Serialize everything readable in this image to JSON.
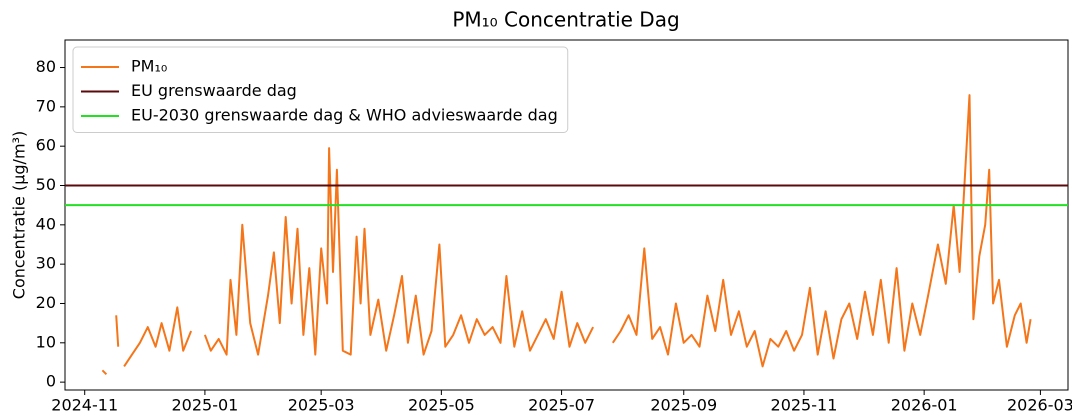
{
  "chart_data": {
    "type": "line",
    "title": "PM₁₀ Concentratie Dag",
    "ylabel": "Concentratie (μg/m³)",
    "legend": "upper left",
    "ylim": [
      -2,
      87
    ],
    "yticks": [
      0,
      10,
      20,
      30,
      40,
      50,
      60,
      70,
      80
    ],
    "xlim": [
      "2024-10-22",
      "2026-03-15"
    ],
    "xticks": [
      "2024-11",
      "2025-01",
      "2025-03",
      "2025-05",
      "2025-07",
      "2025-09",
      "2025-11",
      "2026-01",
      "2026-03"
    ],
    "x": [
      "2024-11-10",
      "2024-11-12",
      "2024-11-14",
      "2024-11-17",
      "2024-11-18",
      "2024-11-19",
      "2024-11-21",
      "2024-11-25",
      "2024-11-29",
      "2024-12-03",
      "2024-12-07",
      "2024-12-10",
      "2024-12-14",
      "2024-12-18",
      "2024-12-21",
      "2024-12-25",
      "2024-12-28",
      "2025-01-01",
      "2025-01-04",
      "2025-01-08",
      "2025-01-12",
      "2025-01-14",
      "2025-01-17",
      "2025-01-20",
      "2025-01-24",
      "2025-01-28",
      "2025-02-02",
      "2025-02-05",
      "2025-02-08",
      "2025-02-11",
      "2025-02-14",
      "2025-02-17",
      "2025-02-20",
      "2025-02-23",
      "2025-02-26",
      "2025-03-01",
      "2025-03-04",
      "2025-03-05",
      "2025-03-07",
      "2025-03-09",
      "2025-03-12",
      "2025-03-16",
      "2025-03-19",
      "2025-03-21",
      "2025-03-23",
      "2025-03-26",
      "2025-03-30",
      "2025-04-03",
      "2025-04-07",
      "2025-04-11",
      "2025-04-14",
      "2025-04-18",
      "2025-04-22",
      "2025-04-26",
      "2025-04-30",
      "2025-05-03",
      "2025-05-07",
      "2025-05-11",
      "2025-05-15",
      "2025-05-19",
      "2025-05-23",
      "2025-05-27",
      "2025-05-31",
      "2025-06-03",
      "2025-06-07",
      "2025-06-11",
      "2025-06-15",
      "2025-06-19",
      "2025-06-23",
      "2025-06-27",
      "2025-07-01",
      "2025-07-05",
      "2025-07-09",
      "2025-07-13",
      "2025-07-17",
      "2025-07-22",
      "2025-07-27",
      "2025-07-31",
      "2025-08-04",
      "2025-08-08",
      "2025-08-12",
      "2025-08-16",
      "2025-08-20",
      "2025-08-24",
      "2025-08-28",
      "2025-09-01",
      "2025-09-05",
      "2025-09-09",
      "2025-09-13",
      "2025-09-17",
      "2025-09-21",
      "2025-09-25",
      "2025-09-29",
      "2025-10-03",
      "2025-10-07",
      "2025-10-11",
      "2025-10-15",
      "2025-10-19",
      "2025-10-23",
      "2025-10-27",
      "2025-10-31",
      "2025-11-04",
      "2025-11-08",
      "2025-11-12",
      "2025-11-16",
      "2025-11-20",
      "2025-11-24",
      "2025-11-28",
      "2025-12-02",
      "2025-12-06",
      "2025-12-10",
      "2025-12-14",
      "2025-12-18",
      "2025-12-22",
      "2025-12-26",
      "2025-12-30",
      "2026-01-03",
      "2026-01-08",
      "2026-01-12",
      "2026-01-16",
      "2026-01-19",
      "2026-01-22",
      "2026-01-24",
      "2026-01-26",
      "2026-01-29",
      "2026-02-01",
      "2026-02-03",
      "2026-02-05",
      "2026-02-08",
      "2026-02-12",
      "2026-02-16",
      "2026-02-19",
      "2026-02-22",
      "2026-02-24"
    ],
    "series": [
      {
        "name": "PM₁₀",
        "color": "#f5761a",
        "values": [
          3,
          2,
          null,
          17,
          9,
          null,
          4,
          7,
          10,
          14,
          9,
          15,
          8,
          19,
          8,
          13,
          null,
          12,
          8,
          11,
          7,
          26,
          12,
          40,
          15,
          7,
          22,
          33,
          15,
          42,
          20,
          39,
          12,
          29,
          7,
          34,
          20,
          59.5,
          28,
          54,
          8,
          7,
          37,
          20,
          39,
          12,
          21,
          8,
          17,
          27,
          10,
          22,
          7,
          13,
          35,
          9,
          12,
          17,
          10,
          16,
          12,
          14,
          10,
          27,
          9,
          18,
          8,
          12,
          16,
          11,
          23,
          9,
          15,
          10,
          14,
          null,
          10,
          13,
          17,
          12,
          34,
          11,
          14,
          7,
          20,
          10,
          12,
          9,
          22,
          13,
          26,
          12,
          18,
          9,
          13,
          4,
          11,
          9,
          13,
          8,
          12,
          24,
          7,
          18,
          6,
          16,
          20,
          11,
          23,
          12,
          26,
          10,
          29,
          8,
          20,
          12,
          22,
          35,
          25,
          45,
          28,
          55,
          73,
          16,
          32,
          40,
          54,
          20,
          26,
          9,
          17,
          20,
          10,
          16
        ]
      }
    ],
    "hlines": [
      {
        "name": "EU grenswaarde dag",
        "value": 50,
        "color": "#5a0a0a"
      },
      {
        "name": "EU-2030 grenswaarde dag & WHO advieswaarde dag",
        "value": 45,
        "color": "#22e022"
      }
    ]
  }
}
